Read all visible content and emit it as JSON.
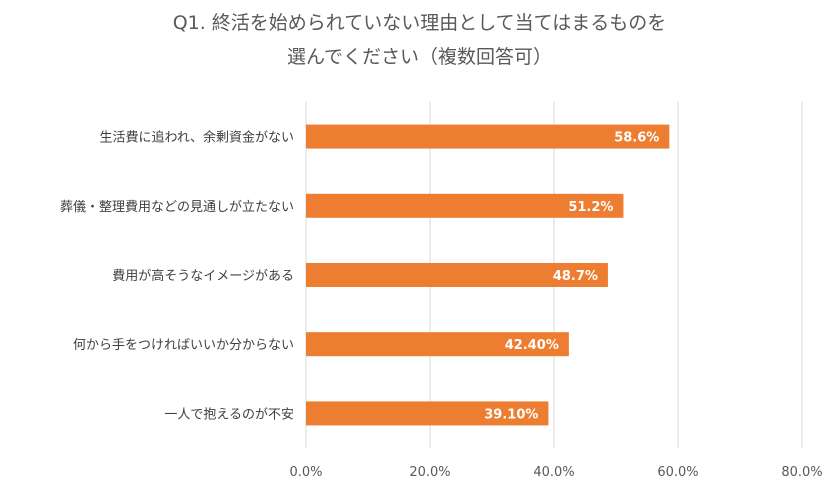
{
  "chart_data": {
    "type": "bar",
    "orientation": "horizontal",
    "title_lines": [
      "Q1. 終活を始められていない理由として当てはまるものを",
      "選んでください（複数回答可）"
    ],
    "categories": [
      "生活費に追われ、余剰資金がない",
      "葬儀・整理費用などの見通しが立たない",
      "費用が高そうなイメージがある",
      "何から手をつければいいか分からない",
      "一人で抱えるのが不安"
    ],
    "values": [
      58.6,
      51.2,
      48.7,
      42.4,
      39.1
    ],
    "data_labels": [
      "58.6%",
      "51.2%",
      "48.7%",
      "42.40%",
      "39.10%"
    ],
    "x_ticks": [
      0,
      20,
      40,
      60,
      80
    ],
    "x_tick_labels": [
      "0.0%",
      "20.0%",
      "40.0%",
      "60.0%",
      "80.0%"
    ],
    "xlim": [
      0,
      80
    ],
    "xlabel": "",
    "ylabel": "",
    "grid": true,
    "bar_color": "#ED7D31",
    "grid_color": "#D9D9D9"
  }
}
